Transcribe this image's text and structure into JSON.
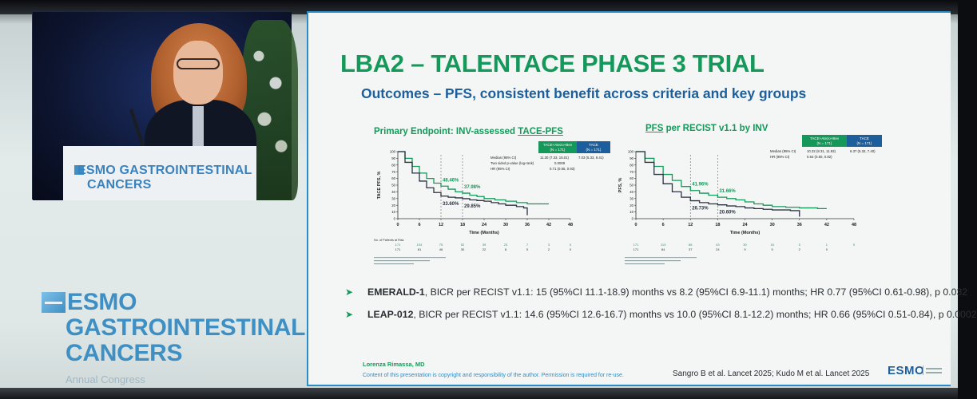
{
  "video": {
    "podium_line1": "ESMO GASTROINTESTINAL",
    "podium_line2": "CANCERS"
  },
  "branding": {
    "line1": "ESMO",
    "line2": "GASTROINTESTINAL",
    "line3": "CANCERS",
    "subtitle": "Annual Congress"
  },
  "slide": {
    "title": "LBA2 – TALENTACE PHASE 3 TRIAL",
    "subtitle": "Outcomes – PFS, consistent benefit across criteria and key groups",
    "panels": [
      {
        "title_prefix": "Primary Endpoint: INV-assessed ",
        "title_underlined": "TACE-PFS"
      },
      {
        "title_underlined": "PFS",
        "title_suffix": " per RECIST v1.1 by INV"
      }
    ],
    "bullets": [
      {
        "trial": "EMERALD-1",
        "text": ", BICR per RECIST v1.1: 15 (95%CI 11.1-18.9) months vs 8.2 (95%CI 6.9-11.1) months; HR 0.77 (95%CI 0.61-0.98), p 0.032"
      },
      {
        "trial": "LEAP-012",
        "text": ", BICR per RECIST v1.1: 14.6 (95%CI 12.6-16.7) months vs 10.0 (95%CI 8.1-12.2) months; HR 0.66 (95%CI 0.51-0.84), p 0.0002"
      }
    ],
    "footer": {
      "author": "Lorenza Rimassa, MD",
      "disclaimer": "Content of this presentation is copyright and responsibility of the author. Permission is required for re-use.",
      "references": "Sangro B et al. Lancet 2025; Kudo M et al. Lancet 2025",
      "logo_text": "ESMO"
    }
  },
  "colors": {
    "arm1": "#15995a",
    "arm2": "#2b3340",
    "accent": "#2a8cc7",
    "title": "#15995a"
  },
  "chart_data": [
    {
      "type": "line",
      "title": "Primary Endpoint: INV-assessed TACE-PFS",
      "xlabel": "Time (Months)",
      "ylabel": "TACE PFS, %",
      "xlim": [
        0,
        48
      ],
      "ylim": [
        0,
        100
      ],
      "xticks": [
        0,
        6,
        12,
        18,
        24,
        30,
        36,
        42,
        48
      ],
      "yticks": [
        0,
        10,
        20,
        30,
        40,
        50,
        60,
        70,
        80,
        90,
        100
      ],
      "vlines": [
        12,
        18
      ],
      "risk_label": "No. of Patients at Risk",
      "series": [
        {
          "name": "TACE+Atezo+Bev",
          "n": "(N = 171)",
          "x": [
            0,
            2,
            4,
            6,
            8,
            10,
            12,
            14,
            16,
            18,
            20,
            22,
            24,
            27,
            30,
            33,
            36,
            40,
            42
          ],
          "y": [
            100,
            90,
            78,
            68,
            60,
            53,
            48.5,
            44,
            40,
            38,
            35,
            33,
            30,
            28,
            26,
            24,
            22,
            22,
            22
          ],
          "risk": [
            "171",
            "104",
            "75",
            "52",
            "39",
            "23",
            "7",
            "3",
            "0"
          ]
        },
        {
          "name": "TACE",
          "n": "(N = 171)",
          "x": [
            0,
            2,
            4,
            6,
            8,
            10,
            12,
            14,
            16,
            18,
            20,
            22,
            24,
            26,
            28,
            30,
            33,
            35,
            36
          ],
          "y": [
            100,
            84,
            68,
            56,
            46,
            39,
            33.6,
            32,
            31,
            29.85,
            28,
            27,
            26,
            24,
            22,
            20,
            18,
            16,
            5
          ],
          "risk": [
            "171",
            "81",
            "46",
            "30",
            "22",
            "8",
            "5",
            "2",
            "0"
          ]
        }
      ],
      "annotations": [
        {
          "text": "48.46%",
          "series": 0,
          "x": 12
        },
        {
          "text": "37.98%",
          "series": 0,
          "x": 18
        },
        {
          "text": "33.60%",
          "series": 1,
          "x": 12
        },
        {
          "text": "29.85%",
          "series": 1,
          "x": 18
        }
      ],
      "stats": [
        {
          "label": "Median (95% CI)",
          "val1": "11.30 (7.33, 15.01)",
          "val2": "7.03 (5.33, 8.41)"
        },
        {
          "label": "Two sided p-value (log-rank)",
          "val1": "0.0009"
        },
        {
          "label": "HR (95% CI)",
          "val1": "0.71 (0.55, 0.93)"
        }
      ]
    },
    {
      "type": "line",
      "title": "PFS per RECIST v1.1 by INV",
      "xlabel": "Time (Months)",
      "ylabel": "PFS, %",
      "xlim": [
        0,
        48
      ],
      "ylim": [
        0,
        100
      ],
      "xticks": [
        0,
        6,
        12,
        18,
        24,
        30,
        36,
        42,
        48
      ],
      "yticks": [
        0,
        10,
        20,
        30,
        40,
        50,
        60,
        70,
        80,
        90,
        100
      ],
      "vlines": [
        12,
        18
      ],
      "series": [
        {
          "name": "TACE+Atezo+Bev",
          "n": "(N = 171)",
          "x": [
            0,
            2,
            4,
            6,
            8,
            10,
            12,
            14,
            16,
            18,
            20,
            22,
            24,
            26,
            28,
            30,
            33,
            36,
            40,
            42
          ],
          "y": [
            100,
            90,
            78,
            66,
            57,
            48,
            42,
            38,
            35,
            32,
            30,
            28,
            25,
            22,
            20,
            18,
            17,
            16,
            15,
            15
          ],
          "risk": [
            "171",
            "113",
            "66",
            "43",
            "30",
            "16",
            "5",
            "1",
            "0"
          ]
        },
        {
          "name": "TACE",
          "n": "(N = 171)",
          "x": [
            0,
            2,
            4,
            6,
            8,
            10,
            12,
            14,
            16,
            18,
            20,
            22,
            24,
            26,
            28,
            30,
            34,
            36
          ],
          "y": [
            100,
            84,
            66,
            52,
            40,
            32,
            26.7,
            24,
            22,
            20.6,
            19,
            18,
            16,
            15,
            14,
            13,
            12,
            3
          ],
          "risk": [
            "171",
            "84",
            "37",
            "24",
            "9",
            "5",
            "2",
            "0",
            ""
          ]
        }
      ],
      "annotations": [
        {
          "text": "41.96%",
          "series": 0,
          "x": 12
        },
        {
          "text": "31.66%",
          "series": 0,
          "x": 18
        },
        {
          "text": "26.73%",
          "series": 1,
          "x": 12
        },
        {
          "text": "20.60%",
          "series": 1,
          "x": 18
        }
      ],
      "stats": [
        {
          "label": "Median (95% CI)",
          "val1": "10.32 (8.31, 11.93)",
          "val2": "6.37 (5.32, 7.40)"
        },
        {
          "label": "HR (95% CI)",
          "val1": "0.64 (0.50, 0.82)"
        }
      ]
    }
  ]
}
